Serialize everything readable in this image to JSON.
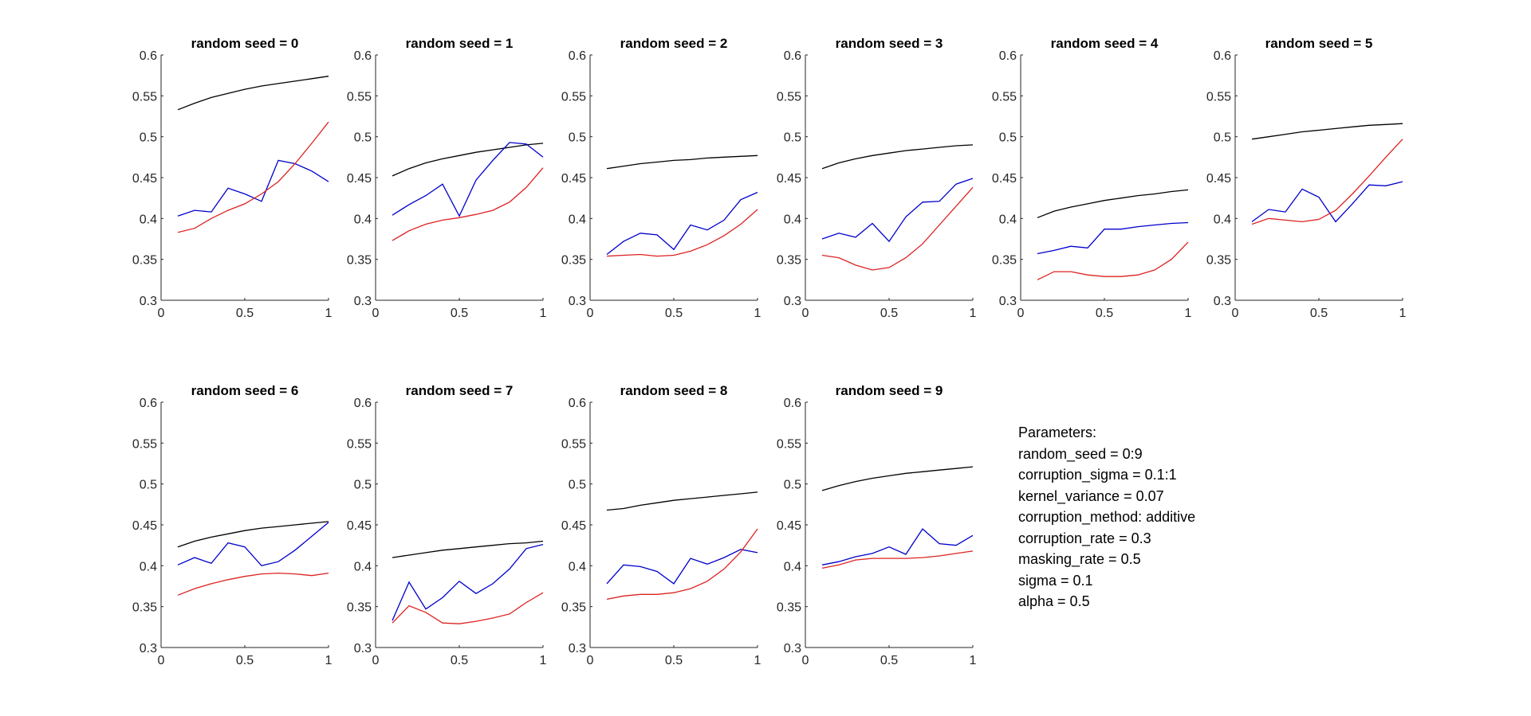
{
  "colors": {
    "black_series": "#000000",
    "blue_series": "#0000cc",
    "red_series": "#dd2222",
    "axis": "#262626"
  },
  "chart_data": [
    {
      "type": "line",
      "title": "random seed = 0",
      "x": [
        0.1,
        0.2,
        0.3,
        0.4,
        0.5,
        0.6,
        0.7,
        0.8,
        0.9,
        1.0
      ],
      "xlim": [
        0,
        1
      ],
      "ylim": [
        0.3,
        0.6
      ],
      "xticks": [
        "0",
        "0.5",
        "1"
      ],
      "yticks": [
        "0.3",
        "0.35",
        "0.4",
        "0.45",
        "0.5",
        "0.55",
        "0.6"
      ],
      "series": [
        {
          "color": "black",
          "values": [
            0.533,
            0.541,
            0.548,
            0.553,
            0.558,
            0.562,
            0.565,
            0.568,
            0.571,
            0.574
          ]
        },
        {
          "color": "blue",
          "values": [
            0.403,
            0.41,
            0.408,
            0.437,
            0.43,
            0.421,
            0.471,
            0.467,
            0.458,
            0.445
          ]
        },
        {
          "color": "red",
          "values": [
            0.383,
            0.388,
            0.4,
            0.41,
            0.418,
            0.43,
            0.445,
            0.467,
            0.492,
            0.518
          ]
        }
      ]
    },
    {
      "type": "line",
      "title": "random seed = 1",
      "x": [
        0.1,
        0.2,
        0.3,
        0.4,
        0.5,
        0.6,
        0.7,
        0.8,
        0.9,
        1.0
      ],
      "xlim": [
        0,
        1
      ],
      "ylim": [
        0.3,
        0.6
      ],
      "xticks": [
        "0",
        "0.5",
        "1"
      ],
      "yticks": [
        "0.3",
        "0.35",
        "0.4",
        "0.45",
        "0.5",
        "0.55",
        "0.6"
      ],
      "series": [
        {
          "color": "black",
          "values": [
            0.452,
            0.461,
            0.468,
            0.473,
            0.477,
            0.481,
            0.484,
            0.487,
            0.49,
            0.492
          ]
        },
        {
          "color": "blue",
          "values": [
            0.404,
            0.417,
            0.428,
            0.442,
            0.403,
            0.447,
            0.471,
            0.493,
            0.491,
            0.475
          ]
        },
        {
          "color": "red",
          "values": [
            0.373,
            0.385,
            0.393,
            0.398,
            0.401,
            0.405,
            0.41,
            0.42,
            0.438,
            0.462
          ]
        }
      ]
    },
    {
      "type": "line",
      "title": "random seed = 2",
      "x": [
        0.1,
        0.2,
        0.3,
        0.4,
        0.5,
        0.6,
        0.7,
        0.8,
        0.9,
        1.0
      ],
      "xlim": [
        0,
        1
      ],
      "ylim": [
        0.3,
        0.6
      ],
      "xticks": [
        "0",
        "0.5",
        "1"
      ],
      "yticks": [
        "0.3",
        "0.35",
        "0.4",
        "0.45",
        "0.5",
        "0.55",
        "0.6"
      ],
      "series": [
        {
          "color": "black",
          "values": [
            0.461,
            0.464,
            0.467,
            0.469,
            0.471,
            0.472,
            0.474,
            0.475,
            0.476,
            0.477
          ]
        },
        {
          "color": "blue",
          "values": [
            0.356,
            0.372,
            0.382,
            0.38,
            0.362,
            0.392,
            0.386,
            0.398,
            0.423,
            0.432
          ]
        },
        {
          "color": "red",
          "values": [
            0.354,
            0.355,
            0.356,
            0.354,
            0.355,
            0.36,
            0.368,
            0.379,
            0.393,
            0.411
          ]
        }
      ]
    },
    {
      "type": "line",
      "title": "random seed = 3",
      "x": [
        0.1,
        0.2,
        0.3,
        0.4,
        0.5,
        0.6,
        0.7,
        0.8,
        0.9,
        1.0
      ],
      "xlim": [
        0,
        1
      ],
      "ylim": [
        0.3,
        0.6
      ],
      "xticks": [
        "0",
        "0.5",
        "1"
      ],
      "yticks": [
        "0.3",
        "0.35",
        "0.4",
        "0.45",
        "0.5",
        "0.55",
        "0.6"
      ],
      "series": [
        {
          "color": "black",
          "values": [
            0.461,
            0.468,
            0.473,
            0.477,
            0.48,
            0.483,
            0.485,
            0.487,
            0.489,
            0.49
          ]
        },
        {
          "color": "blue",
          "values": [
            0.375,
            0.382,
            0.377,
            0.394,
            0.372,
            0.402,
            0.42,
            0.421,
            0.442,
            0.449
          ]
        },
        {
          "color": "red",
          "values": [
            0.355,
            0.352,
            0.343,
            0.337,
            0.34,
            0.352,
            0.369,
            0.392,
            0.415,
            0.438
          ]
        }
      ]
    },
    {
      "type": "line",
      "title": "random seed = 4",
      "x": [
        0.1,
        0.2,
        0.3,
        0.4,
        0.5,
        0.6,
        0.7,
        0.8,
        0.9,
        1.0
      ],
      "xlim": [
        0,
        1
      ],
      "ylim": [
        0.3,
        0.6
      ],
      "xticks": [
        "0",
        "0.5",
        "1"
      ],
      "yticks": [
        "0.3",
        "0.35",
        "0.4",
        "0.45",
        "0.5",
        "0.55",
        "0.6"
      ],
      "series": [
        {
          "color": "black",
          "values": [
            0.401,
            0.409,
            0.414,
            0.418,
            0.422,
            0.425,
            0.428,
            0.43,
            0.433,
            0.435
          ]
        },
        {
          "color": "blue",
          "values": [
            0.357,
            0.361,
            0.366,
            0.364,
            0.387,
            0.387,
            0.39,
            0.392,
            0.394,
            0.395
          ]
        },
        {
          "color": "red",
          "values": [
            0.325,
            0.335,
            0.335,
            0.331,
            0.329,
            0.329,
            0.331,
            0.337,
            0.35,
            0.371
          ]
        }
      ]
    },
    {
      "type": "line",
      "title": "random seed = 5",
      "x": [
        0.1,
        0.2,
        0.3,
        0.4,
        0.5,
        0.6,
        0.7,
        0.8,
        0.9,
        1.0
      ],
      "xlim": [
        0,
        1
      ],
      "ylim": [
        0.3,
        0.6
      ],
      "xticks": [
        "0",
        "0.5",
        "1"
      ],
      "yticks": [
        "0.3",
        "0.35",
        "0.4",
        "0.45",
        "0.5",
        "0.55",
        "0.6"
      ],
      "series": [
        {
          "color": "black",
          "values": [
            0.497,
            0.5,
            0.503,
            0.506,
            0.508,
            0.51,
            0.512,
            0.514,
            0.515,
            0.516
          ]
        },
        {
          "color": "blue",
          "values": [
            0.396,
            0.411,
            0.408,
            0.436,
            0.426,
            0.396,
            0.418,
            0.441,
            0.44,
            0.445
          ]
        },
        {
          "color": "red",
          "values": [
            0.393,
            0.4,
            0.398,
            0.396,
            0.399,
            0.41,
            0.43,
            0.452,
            0.475,
            0.497
          ]
        }
      ]
    },
    {
      "type": "line",
      "title": "random seed = 6",
      "x": [
        0.1,
        0.2,
        0.3,
        0.4,
        0.5,
        0.6,
        0.7,
        0.8,
        0.9,
        1.0
      ],
      "xlim": [
        0,
        1
      ],
      "ylim": [
        0.3,
        0.6
      ],
      "xticks": [
        "0",
        "0.5",
        "1"
      ],
      "yticks": [
        "0.3",
        "0.35",
        "0.4",
        "0.45",
        "0.5",
        "0.55",
        "0.6"
      ],
      "series": [
        {
          "color": "black",
          "values": [
            0.423,
            0.43,
            0.435,
            0.439,
            0.443,
            0.446,
            0.448,
            0.45,
            0.452,
            0.454
          ]
        },
        {
          "color": "blue",
          "values": [
            0.401,
            0.41,
            0.403,
            0.428,
            0.423,
            0.4,
            0.405,
            0.419,
            0.436,
            0.453
          ]
        },
        {
          "color": "red",
          "values": [
            0.364,
            0.372,
            0.378,
            0.383,
            0.387,
            0.39,
            0.391,
            0.39,
            0.388,
            0.391
          ]
        }
      ]
    },
    {
      "type": "line",
      "title": "random seed = 7",
      "x": [
        0.1,
        0.2,
        0.3,
        0.4,
        0.5,
        0.6,
        0.7,
        0.8,
        0.9,
        1.0
      ],
      "xlim": [
        0,
        1
      ],
      "ylim": [
        0.3,
        0.6
      ],
      "xticks": [
        "0",
        "0.5",
        "1"
      ],
      "yticks": [
        "0.3",
        "0.35",
        "0.4",
        "0.45",
        "0.5",
        "0.55",
        "0.6"
      ],
      "series": [
        {
          "color": "black",
          "values": [
            0.41,
            0.413,
            0.416,
            0.419,
            0.421,
            0.423,
            0.425,
            0.427,
            0.428,
            0.43
          ]
        },
        {
          "color": "blue",
          "values": [
            0.333,
            0.38,
            0.347,
            0.361,
            0.381,
            0.366,
            0.378,
            0.396,
            0.421,
            0.426
          ]
        },
        {
          "color": "red",
          "values": [
            0.33,
            0.351,
            0.343,
            0.33,
            0.329,
            0.332,
            0.336,
            0.341,
            0.355,
            0.367
          ]
        }
      ]
    },
    {
      "type": "line",
      "title": "random seed = 8",
      "x": [
        0.1,
        0.2,
        0.3,
        0.4,
        0.5,
        0.6,
        0.7,
        0.8,
        0.9,
        1.0
      ],
      "xlim": [
        0,
        1
      ],
      "ylim": [
        0.3,
        0.6
      ],
      "xticks": [
        "0",
        "0.5",
        "1"
      ],
      "yticks": [
        "0.3",
        "0.35",
        "0.4",
        "0.45",
        "0.5",
        "0.55",
        "0.6"
      ],
      "series": [
        {
          "color": "black",
          "values": [
            0.468,
            0.47,
            0.474,
            0.477,
            0.48,
            0.482,
            0.484,
            0.486,
            0.488,
            0.49
          ]
        },
        {
          "color": "blue",
          "values": [
            0.378,
            0.401,
            0.399,
            0.393,
            0.378,
            0.409,
            0.402,
            0.41,
            0.42,
            0.416
          ]
        },
        {
          "color": "red",
          "values": [
            0.359,
            0.363,
            0.365,
            0.365,
            0.367,
            0.372,
            0.381,
            0.396,
            0.417,
            0.445
          ]
        }
      ]
    },
    {
      "type": "line",
      "title": "random seed = 9",
      "x": [
        0.1,
        0.2,
        0.3,
        0.4,
        0.5,
        0.6,
        0.7,
        0.8,
        0.9,
        1.0
      ],
      "xlim": [
        0,
        1
      ],
      "ylim": [
        0.3,
        0.6
      ],
      "xticks": [
        "0",
        "0.5",
        "1"
      ],
      "yticks": [
        "0.3",
        "0.35",
        "0.4",
        "0.45",
        "0.5",
        "0.55",
        "0.6"
      ],
      "series": [
        {
          "color": "black",
          "values": [
            0.492,
            0.498,
            0.503,
            0.507,
            0.51,
            0.513,
            0.515,
            0.517,
            0.519,
            0.521
          ]
        },
        {
          "color": "blue",
          "values": [
            0.401,
            0.405,
            0.411,
            0.415,
            0.423,
            0.414,
            0.445,
            0.427,
            0.425,
            0.437
          ]
        },
        {
          "color": "red",
          "values": [
            0.397,
            0.401,
            0.407,
            0.409,
            0.409,
            0.409,
            0.41,
            0.412,
            0.415,
            0.418
          ]
        }
      ]
    }
  ],
  "parameters": {
    "heading": "Parameters:",
    "lines": [
      "random_seed = 0:9",
      "corruption_sigma = 0.1:1",
      "kernel_variance = 0.07",
      "corruption_method: additive",
      "corruption_rate = 0.3",
      "masking_rate = 0.5",
      "sigma = 0.1",
      "alpha = 0.5"
    ]
  }
}
